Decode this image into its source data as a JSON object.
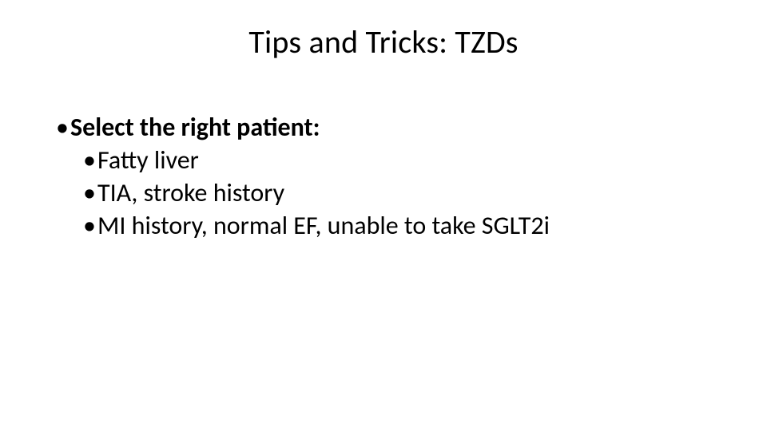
{
  "slide": {
    "title": "Tips and Tricks: TZDs",
    "title_fontsize": 40,
    "title_color": "#000000",
    "body_fontsize": 32,
    "body_color": "#000000",
    "bullet_glyph": "•",
    "background_color": "#ffffff",
    "items": [
      {
        "level": 1,
        "text": "Select the right patient:",
        "bold": true
      },
      {
        "level": 2,
        "text": "Fatty liver",
        "bold": false
      },
      {
        "level": 2,
        "text": "TIA, stroke history",
        "bold": false
      },
      {
        "level": 2,
        "text": "MI history, normal EF, unable to take SGLT2i",
        "bold": false
      }
    ]
  }
}
